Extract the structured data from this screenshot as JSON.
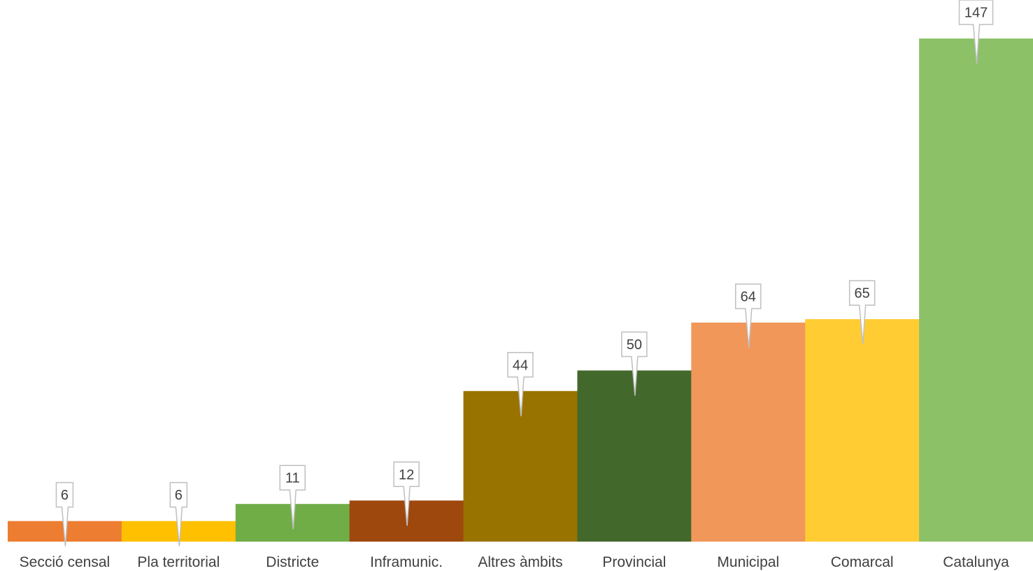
{
  "chart_data": {
    "type": "bar",
    "categories": [
      "Secció censal",
      "Pla territorial",
      "Districte",
      "Inframunic.",
      "Altres àmbits",
      "Provincial",
      "Municipal",
      "Comarcal",
      "Catalunya"
    ],
    "values": [
      6,
      6,
      11,
      12,
      44,
      50,
      64,
      65,
      147
    ],
    "colors": [
      "#ED7D31",
      "#FFC000",
      "#70AD47",
      "#9E480E",
      "#997300",
      "#43682B",
      "#F1975A",
      "#FFCD33",
      "#8CC168"
    ],
    "ylim": [
      0,
      150
    ],
    "grid": false,
    "legend": "none",
    "data_labels": true
  }
}
